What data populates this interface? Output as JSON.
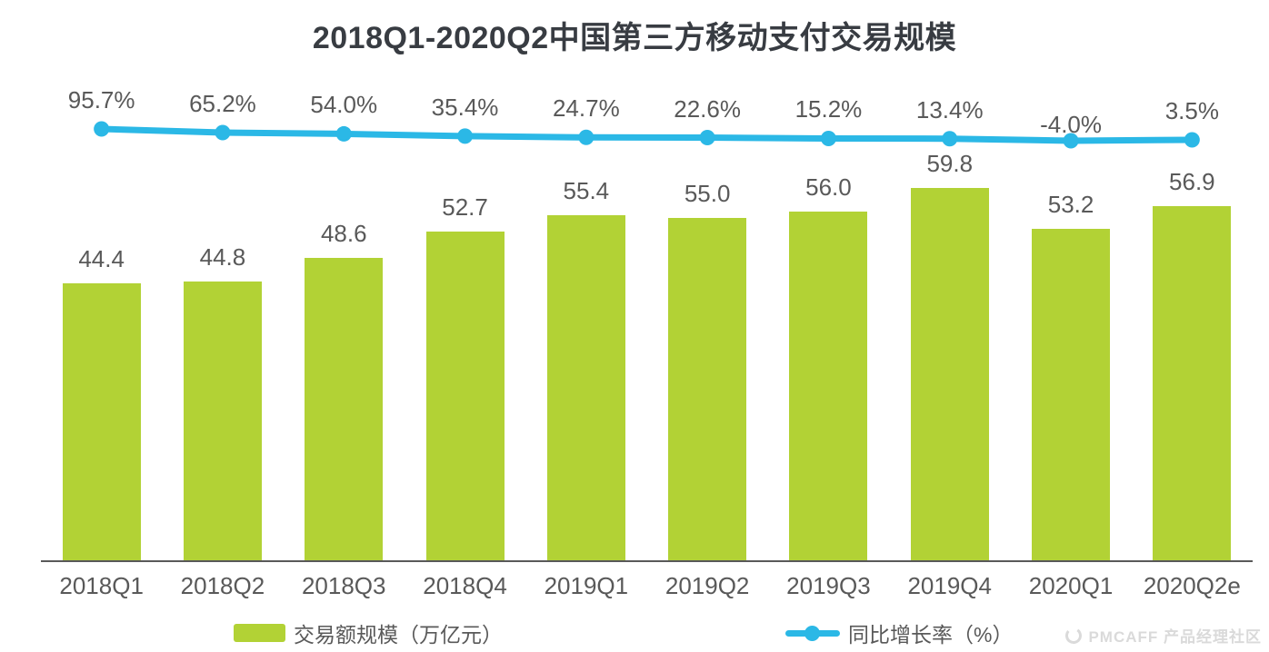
{
  "title": "2018Q1-2020Q2中国第三方移动支付交易规模",
  "legend": {
    "bar_label": "交易额规模（万亿元）",
    "line_label": "同比增长率（%）"
  },
  "watermark": {
    "text": "PMCAFF 产品经理社区"
  },
  "colors": {
    "bar": "#b2d235",
    "line": "#2bb8e6",
    "label": "#595959",
    "title": "#383c42",
    "axis": "#595959",
    "watermark": "#dadada"
  },
  "chart_data": {
    "type": "bar",
    "title": "2018Q1-2020Q2中国第三方移动支付交易规模",
    "categories": [
      "2018Q1",
      "2018Q2",
      "2018Q3",
      "2018Q4",
      "2019Q1",
      "2019Q2",
      "2019Q3",
      "2019Q4",
      "2020Q1",
      "2020Q2e"
    ],
    "series": [
      {
        "name": "交易额规模（万亿元）",
        "type": "bar",
        "color": "#b2d235",
        "values": [
          44.4,
          44.8,
          48.6,
          52.7,
          55.4,
          55.0,
          56.0,
          59.8,
          53.2,
          56.9
        ],
        "labels": [
          "44.4",
          "44.8",
          "48.6",
          "52.7",
          "55.4",
          "55.0",
          "56.0",
          "59.8",
          "53.2",
          "56.9"
        ]
      },
      {
        "name": "同比增长率（%）",
        "type": "line",
        "color": "#2bb8e6",
        "values": [
          95.7,
          65.2,
          54.0,
          35.4,
          24.7,
          22.6,
          15.2,
          13.4,
          -4.0,
          3.5
        ],
        "labels": [
          "95.7%",
          "65.2%",
          "54.0%",
          "35.4%",
          "24.7%",
          "22.6%",
          "15.2%",
          "13.4%",
          "-4.0%",
          "3.5%"
        ]
      }
    ],
    "xlabel": "",
    "ylabel": "",
    "ylim_bar": [
      0,
      78
    ],
    "grid": false,
    "legend_position": "bottom"
  }
}
